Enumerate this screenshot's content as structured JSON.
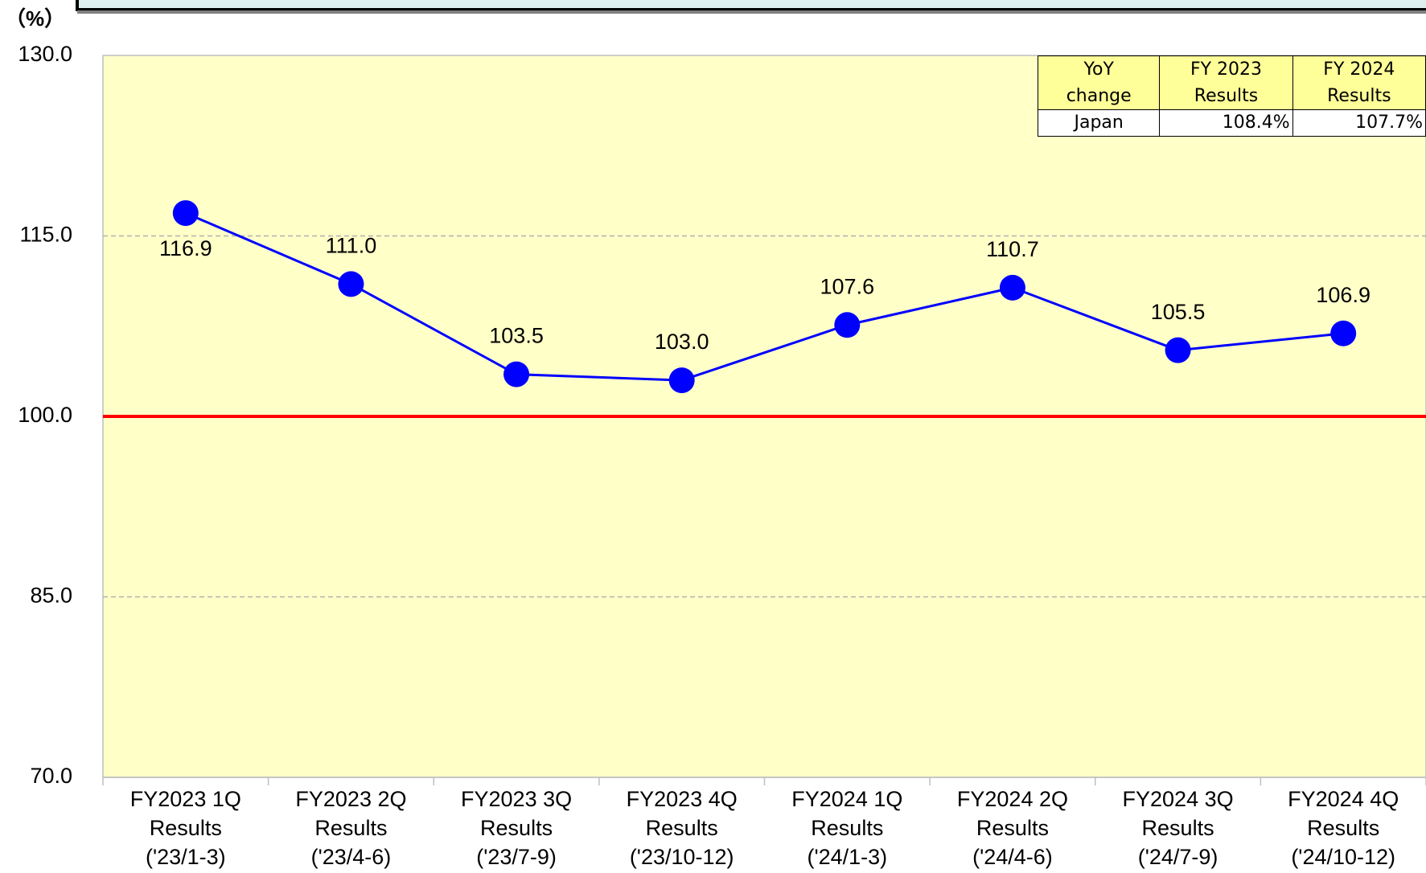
{
  "chart_data": {
    "type": "line",
    "y_unit": "（%）",
    "categories": [
      [
        "FY2023 1Q",
        "Results",
        "('23/1-3)"
      ],
      [
        "FY2023 2Q",
        "Results",
        "('23/4-6)"
      ],
      [
        "FY2023 3Q",
        "Results",
        "('23/7-9)"
      ],
      [
        "FY2023 4Q",
        "Results",
        "('23/10-12)"
      ],
      [
        "FY2024 1Q",
        "Results",
        "('24/1-3)"
      ],
      [
        "FY2024 2Q",
        "Results",
        "('24/4-6)"
      ],
      [
        "FY2024 3Q",
        "Results",
        "('24/7-9)"
      ],
      [
        "FY2024 4Q",
        "Results",
        "('24/10-12)"
      ]
    ],
    "values": [
      116.9,
      111.0,
      103.5,
      103.0,
      107.6,
      110.7,
      105.5,
      106.9
    ],
    "value_labels": [
      "116.9",
      "111.0",
      "103.5",
      "103.0",
      "107.6",
      "110.7",
      "105.5",
      "106.9"
    ],
    "label_positions": [
      "below",
      "above",
      "above",
      "above",
      "above",
      "above",
      "above",
      "above"
    ],
    "color": "#0000ff",
    "ylim": [
      70,
      130
    ],
    "yticks": [
      {
        "value": 70,
        "label": "70.0"
      },
      {
        "value": 85,
        "label": "85.0"
      },
      {
        "value": 100,
        "label": "100.0"
      },
      {
        "value": 115,
        "label": "115.0"
      },
      {
        "value": 130,
        "label": "130.0"
      }
    ],
    "reference_line": {
      "value": 100,
      "color": "#ff0000"
    },
    "grid": true
  },
  "table": {
    "header": [
      [
        "YoY",
        "change"
      ],
      [
        "FY 2023",
        "Results"
      ],
      [
        "FY 2024",
        "Results"
      ]
    ],
    "rows": [
      [
        "Japan",
        "108.4%",
        "107.7%"
      ]
    ]
  }
}
